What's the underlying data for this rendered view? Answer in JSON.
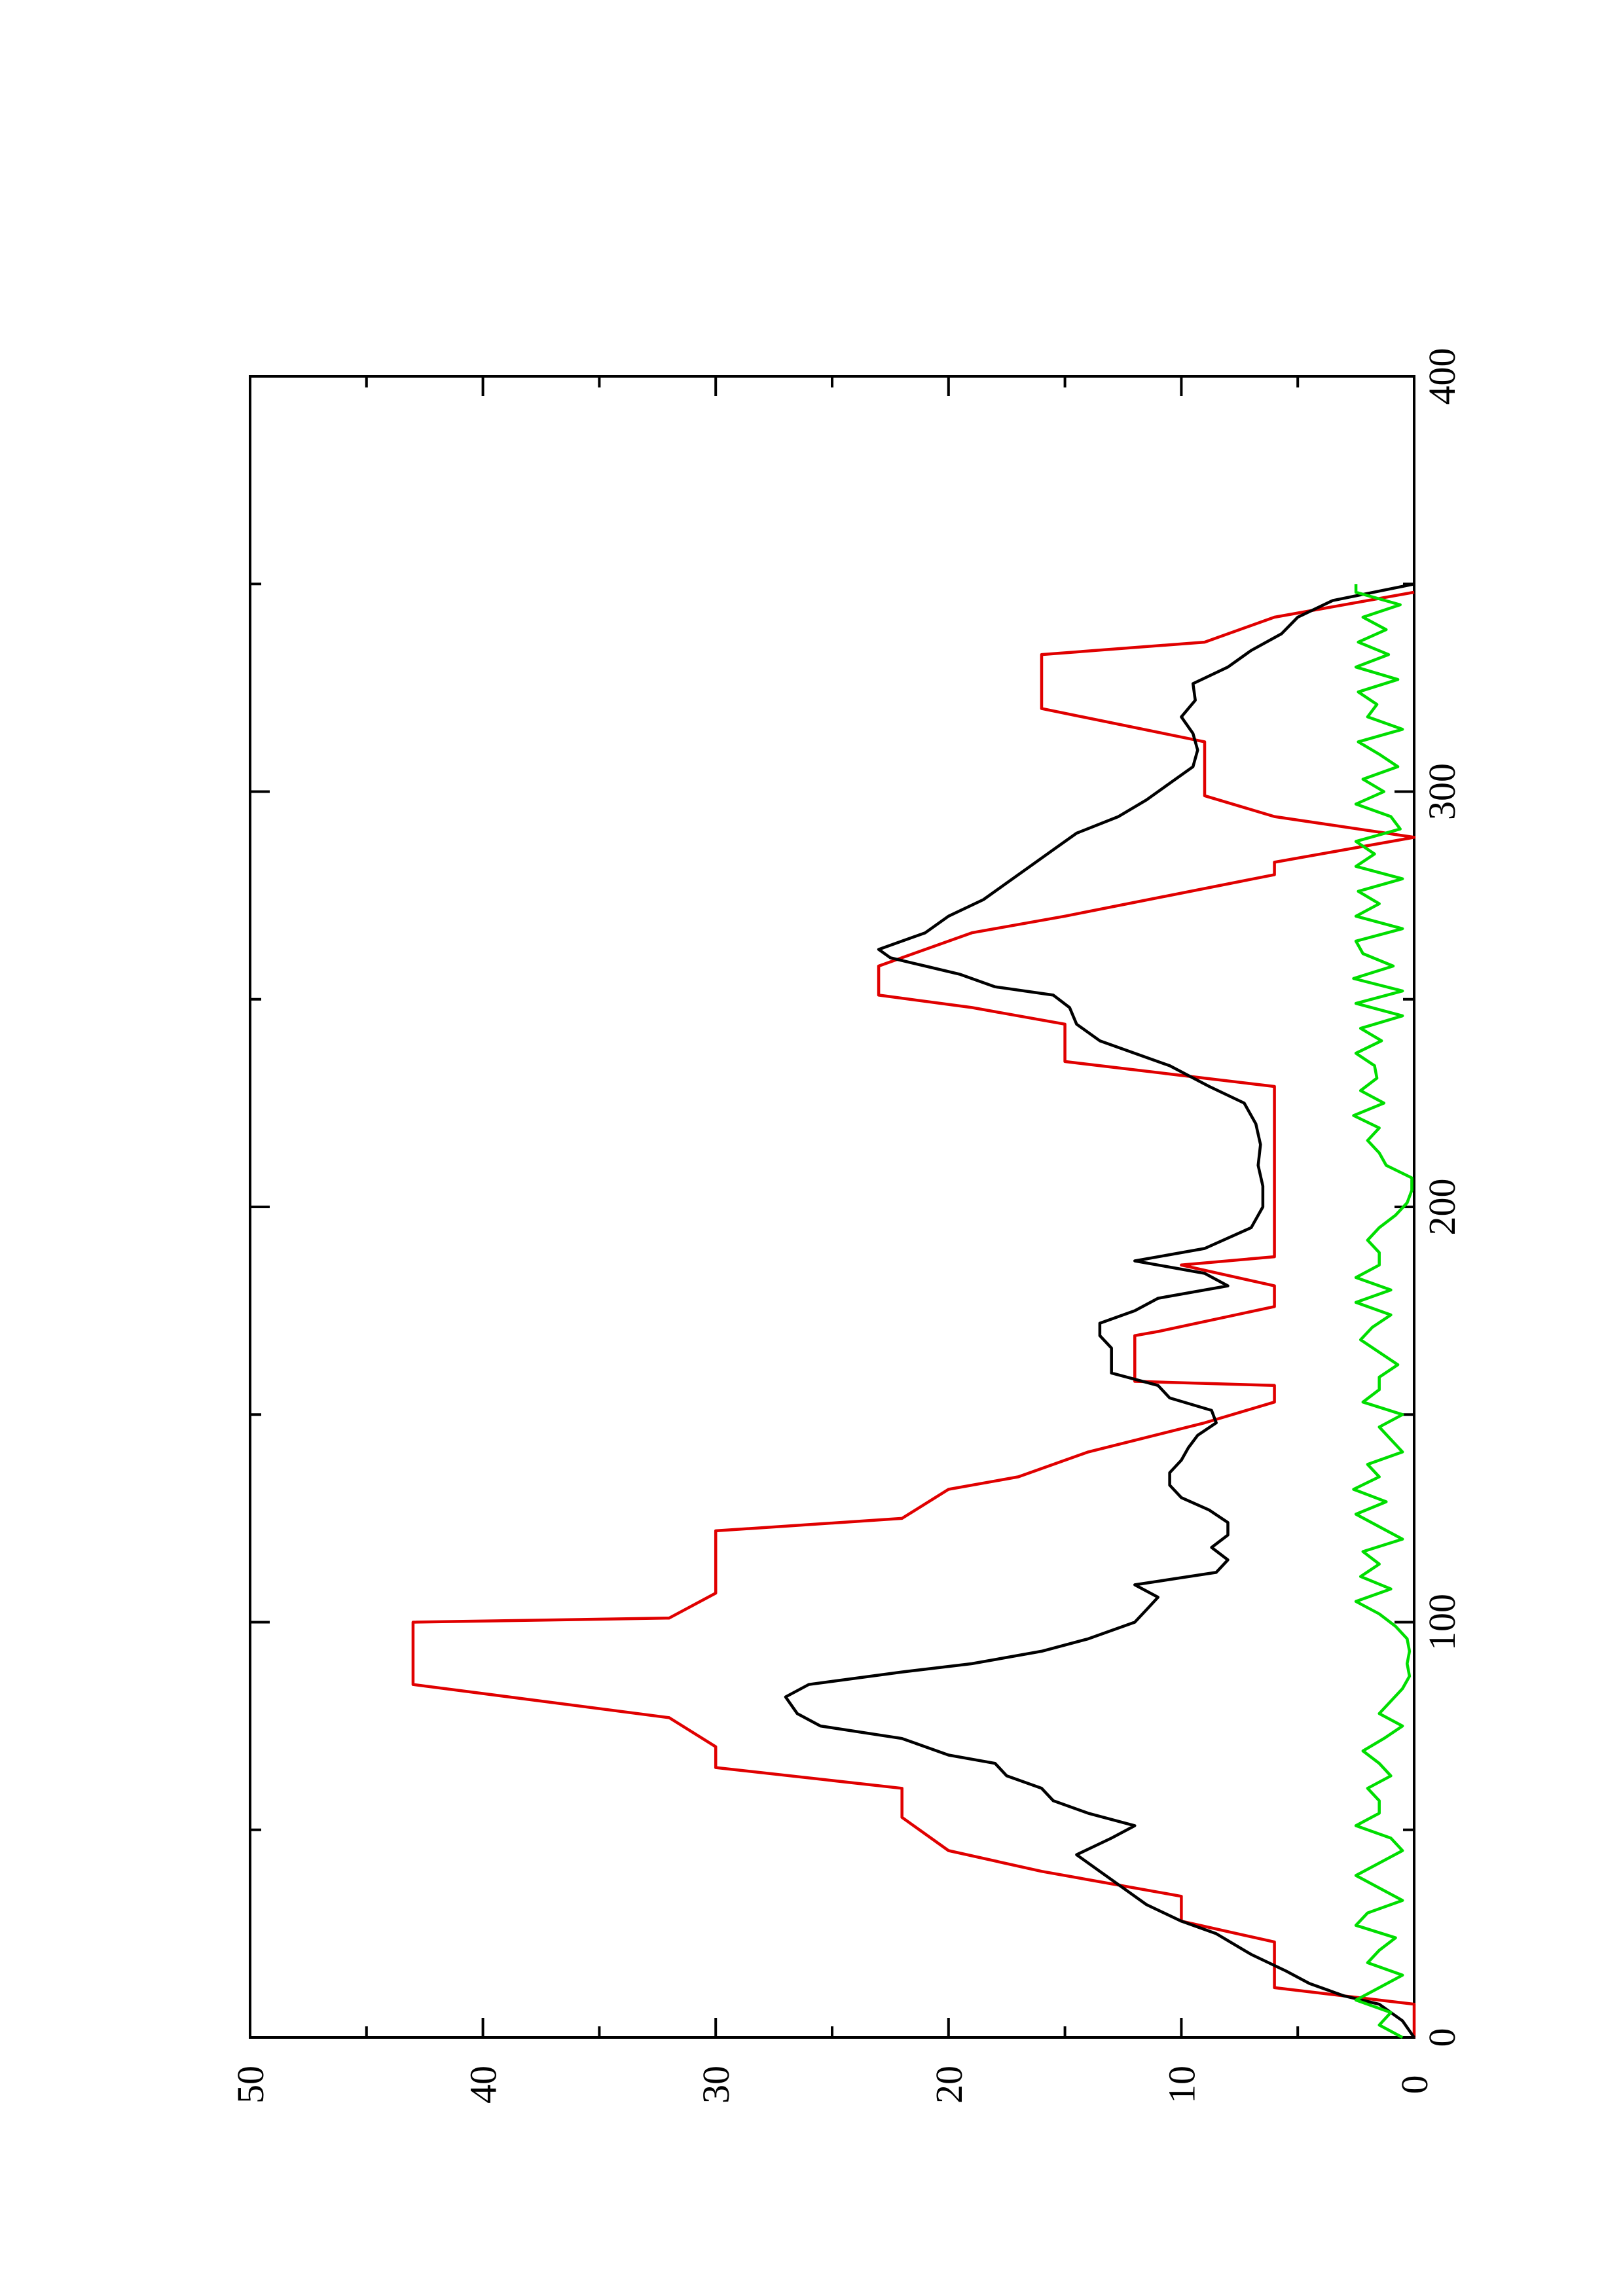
{
  "chart_data": {
    "type": "line",
    "orientation": "rotated-90-ccw",
    "title": "",
    "xlabel": "",
    "ylabel": "",
    "xlim": [
      0,
      400
    ],
    "ylim": [
      0,
      50
    ],
    "x_ticks": [
      "0",
      "100",
      "200",
      "300",
      "400"
    ],
    "y_ticks": [
      "0",
      "10",
      "20",
      "30",
      "40",
      "50"
    ],
    "x_minor_ticks": [
      50,
      150,
      250,
      350
    ],
    "y_minor_ticks": [
      5,
      15,
      25,
      35,
      45
    ],
    "grid": false,
    "legend": "none",
    "series": [
      {
        "color": "#e00000",
        "x": [
          0,
          8,
          12,
          23,
          28,
          34,
          40,
          45,
          53,
          60,
          65,
          70,
          77,
          85,
          100,
          101,
          107,
          122,
          125,
          132,
          135,
          141,
          148,
          153,
          157,
          158,
          169,
          170,
          176,
          181,
          186,
          188,
          215,
          229,
          235,
          244,
          248,
          251,
          258,
          266,
          270,
          280,
          283,
          289,
          294,
          299,
          301,
          312,
          320,
          333,
          336,
          342,
          348
        ],
        "y": [
          0,
          0,
          6,
          6,
          10,
          10,
          16,
          20,
          22,
          22,
          30,
          30,
          32,
          43,
          43,
          32,
          30,
          30,
          22,
          20,
          17,
          14,
          9,
          6,
          6,
          12,
          12,
          11,
          6,
          6,
          10,
          6,
          6,
          6,
          15,
          15,
          19,
          23,
          23,
          19,
          15,
          6,
          6,
          0,
          6,
          9,
          9,
          9,
          16,
          16,
          9,
          6,
          0
        ]
      },
      {
        "color": "#000000",
        "x": [
          0,
          4,
          8,
          10,
          13,
          16,
          20,
          25,
          28,
          32,
          36,
          40,
          44,
          48,
          51,
          54,
          57,
          60,
          63,
          66,
          68,
          72,
          75,
          78,
          82,
          85,
          88,
          90,
          93,
          96,
          100,
          103,
          106,
          109,
          112,
          115,
          118,
          121,
          124,
          127,
          130,
          133,
          136,
          139,
          142,
          145,
          148,
          151,
          154,
          157,
          160,
          163,
          166,
          169,
          172,
          175,
          178,
          181,
          184,
          187,
          190,
          195,
          200,
          205,
          210,
          215,
          220,
          225,
          229,
          234,
          240,
          244,
          248,
          251,
          253,
          256,
          258,
          260,
          262,
          264,
          266,
          270,
          274,
          278,
          282,
          286,
          290,
          294,
          298,
          302,
          306,
          310,
          314,
          318,
          322,
          326,
          330,
          334,
          338,
          342,
          346,
          350
        ],
        "y": [
          0,
          0.5,
          1.5,
          3,
          4.5,
          5.5,
          7,
          8.5,
          10,
          11.5,
          12.5,
          13.5,
          14.5,
          13,
          12,
          14,
          15.5,
          16,
          17.5,
          18,
          20,
          22,
          25.5,
          26.5,
          27,
          26,
          22,
          19,
          16,
          14,
          12,
          11.5,
          11,
          12,
          8.5,
          8,
          8.7,
          8,
          8,
          8.8,
          10,
          10.5,
          10.5,
          10,
          9.7,
          9.3,
          8.5,
          8.7,
          10.5,
          11,
          13,
          13,
          13,
          13.5,
          13.5,
          12,
          11,
          8,
          9,
          12,
          9,
          7,
          6.5,
          6.5,
          6.7,
          6.6,
          6.8,
          7.3,
          8.8,
          10.5,
          13.5,
          14.5,
          14.8,
          15.5,
          18,
          19.5,
          21,
          22.5,
          23,
          22,
          21,
          20,
          18.5,
          17.5,
          16.5,
          15.5,
          14.5,
          12.7,
          11.5,
          10.5,
          9.5,
          9.3,
          9.5,
          10,
          9.4,
          9.5,
          8,
          7,
          5.7,
          5,
          3.5,
          0
        ]
      },
      {
        "color": "#00dd00",
        "x": [
          0,
          3,
          6,
          9,
          12,
          15,
          18,
          21,
          24,
          27,
          30,
          33,
          36,
          39,
          42,
          45,
          48,
          51,
          54,
          57,
          60,
          63,
          66,
          69,
          72,
          75,
          78,
          81,
          84,
          87,
          90,
          93,
          96,
          99,
          102,
          105,
          108,
          111,
          114,
          117,
          120,
          123,
          126,
          129,
          132,
          135,
          138,
          141,
          144,
          147,
          150,
          153,
          156,
          159,
          162,
          165,
          168,
          171,
          174,
          177,
          180,
          183,
          186,
          189,
          192,
          195,
          198,
          201,
          204,
          207,
          210,
          213,
          216,
          219,
          222,
          225,
          228,
          231,
          234,
          237,
          240,
          243,
          246,
          249,
          252,
          255,
          258,
          261,
          264,
          267,
          270,
          273,
          276,
          279,
          282,
          285,
          288,
          291,
          294,
          297,
          300,
          303,
          306,
          309,
          312,
          315,
          318,
          321,
          324,
          327,
          330,
          333,
          336,
          339,
          342,
          345,
          348,
          350
        ],
        "y": [
          0.5,
          1.5,
          1,
          2.5,
          1.5,
          0.5,
          2,
          1.5,
          0.8,
          2.5,
          2,
          0.5,
          1.5,
          2.5,
          1.5,
          0.5,
          1,
          2.5,
          1.5,
          1.5,
          2,
          1,
          1.5,
          2.2,
          1.3,
          0.5,
          1.5,
          1,
          0.5,
          0.2,
          0.3,
          0.2,
          0.3,
          0.8,
          1.5,
          2.5,
          1,
          2.3,
          1.5,
          2.2,
          0.5,
          1.5,
          2.5,
          1.2,
          2.6,
          1.5,
          2,
          0.5,
          1,
          1.5,
          0.5,
          2.2,
          1.5,
          1.5,
          0.7,
          1.5,
          2.3,
          1.8,
          1,
          2.5,
          1,
          2.5,
          1.5,
          1.5,
          2,
          1.5,
          0.8,
          0.3,
          0.1,
          0.1,
          1.2,
          1.5,
          2,
          1.5,
          2.6,
          1.3,
          2.3,
          1.6,
          1.7,
          2.5,
          1.4,
          2.3,
          0.5,
          2.5,
          0.5,
          2.6,
          0.9,
          2.2,
          2.5,
          0.5,
          2.5,
          1.5,
          2.4,
          0.5,
          2.5,
          1.7,
          2.5,
          0.6,
          1,
          2.5,
          1.3,
          2.2,
          0.7,
          1.5,
          2.4,
          0.5,
          2,
          1.6,
          2.4,
          0.7,
          2.5,
          1.1,
          2.4,
          1.2,
          2.2,
          0.6,
          2.5,
          2.5
        ]
      }
    ]
  }
}
